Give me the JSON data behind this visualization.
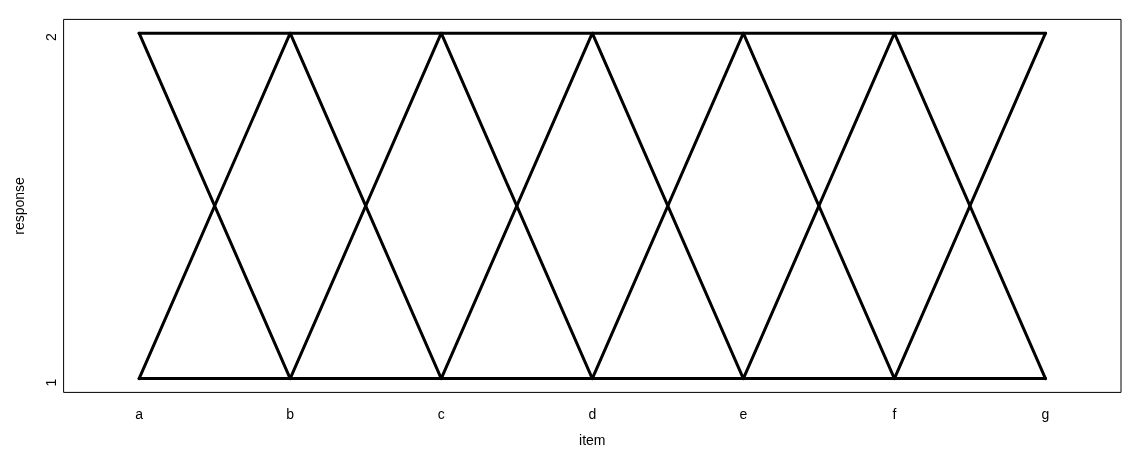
{
  "chart_data": {
    "type": "line",
    "xlabel": "item",
    "ylabel": "response",
    "categories": [
      "a",
      "b",
      "c",
      "d",
      "e",
      "f",
      "g"
    ],
    "ylim": [
      0.96,
      2.04
    ],
    "yticks": [
      1,
      2
    ],
    "grid": false,
    "legend": false,
    "marker": "none",
    "line_style": "solid",
    "series": [
      {
        "color": "#000000",
        "values": [
          2,
          2,
          2,
          2,
          2,
          2,
          2
        ]
      },
      {
        "color": "#000000",
        "values": [
          1,
          2,
          1,
          2,
          1,
          2,
          1
        ]
      },
      {
        "color": "#000000",
        "values": [
          2,
          1,
          2,
          1,
          2,
          1,
          2
        ]
      },
      {
        "color": "#000000",
        "values": [
          1,
          1,
          1,
          1,
          1,
          1,
          1
        ]
      }
    ]
  }
}
